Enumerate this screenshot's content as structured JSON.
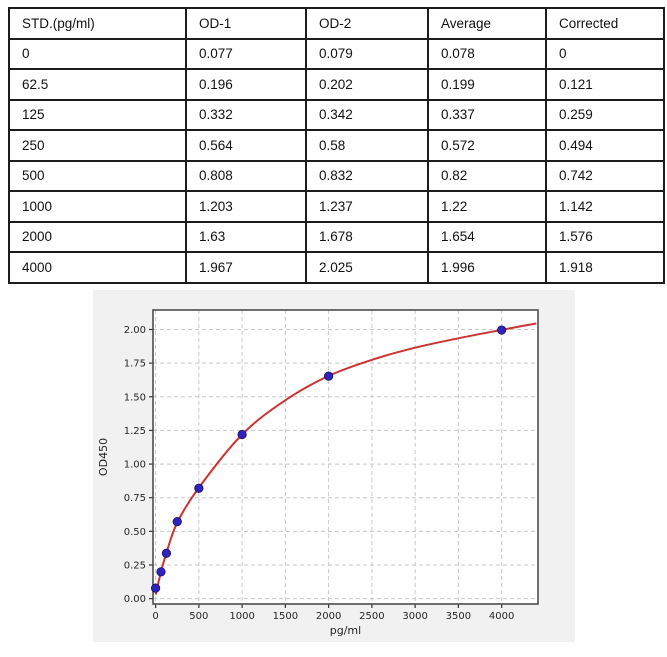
{
  "table": {
    "columns": [
      "STD.(pg/ml)",
      "OD-1",
      "OD-2",
      "Average",
      "Corrected"
    ],
    "rows": [
      [
        "0",
        "0.077",
        "0.079",
        "0.078",
        "0"
      ],
      [
        "62.5",
        "0.196",
        "0.202",
        "0.199",
        "0.121"
      ],
      [
        "125",
        "0.332",
        "0.342",
        "0.337",
        "0.259"
      ],
      [
        "250",
        "0.564",
        "0.58",
        "0.572",
        "0.494"
      ],
      [
        "500",
        "0.808",
        "0.832",
        "0.82",
        "0.742"
      ],
      [
        "1000",
        "1.203",
        "1.237",
        "1.22",
        "1.142"
      ],
      [
        "2000",
        "1.63",
        "1.678",
        "1.654",
        "1.576"
      ],
      [
        "4000",
        "1.967",
        "2.025",
        "1.996",
        "1.918"
      ]
    ]
  },
  "chart_data": {
    "type": "scatter",
    "title": "",
    "xlabel": "pg/ml",
    "ylabel": "OD450",
    "xlim": [
      -30,
      4420
    ],
    "ylim": [
      -0.04,
      2.145
    ],
    "xticks": [
      0,
      500,
      1000,
      1500,
      2000,
      2500,
      3000,
      3500,
      4000
    ],
    "yticks": [
      0.0,
      0.25,
      0.5,
      0.75,
      1.0,
      1.25,
      1.5,
      1.75,
      2.0
    ],
    "grid": true,
    "legend_position": "none",
    "series": [
      {
        "name": "standard-points",
        "type": "scatter",
        "x": [
          0,
          62.5,
          125,
          250,
          500,
          1000,
          2000,
          4000
        ],
        "y": [
          0.078,
          0.199,
          0.337,
          0.572,
          0.82,
          1.22,
          1.654,
          1.996
        ]
      },
      {
        "name": "fitted-curve",
        "type": "line",
        "points": [
          [
            0,
            0.03
          ],
          [
            62.5,
            0.2
          ],
          [
            125,
            0.34
          ],
          [
            250,
            0.565
          ],
          [
            500,
            0.825
          ],
          [
            1000,
            1.22
          ],
          [
            1500,
            1.475
          ],
          [
            2000,
            1.655
          ],
          [
            2500,
            1.775
          ],
          [
            3000,
            1.865
          ],
          [
            3500,
            1.935
          ],
          [
            4000,
            1.997
          ],
          [
            4400,
            2.045
          ]
        ]
      }
    ]
  },
  "colors": {
    "curve": "#cc3333",
    "marker": "#2f24ba",
    "marker_edge": "#191070",
    "grid": "#c8c8c8",
    "spine": "#4d4d4d",
    "tick": "#333333",
    "figure_bg": "#f1f1f1",
    "plot_bg": "#ffffff"
  }
}
